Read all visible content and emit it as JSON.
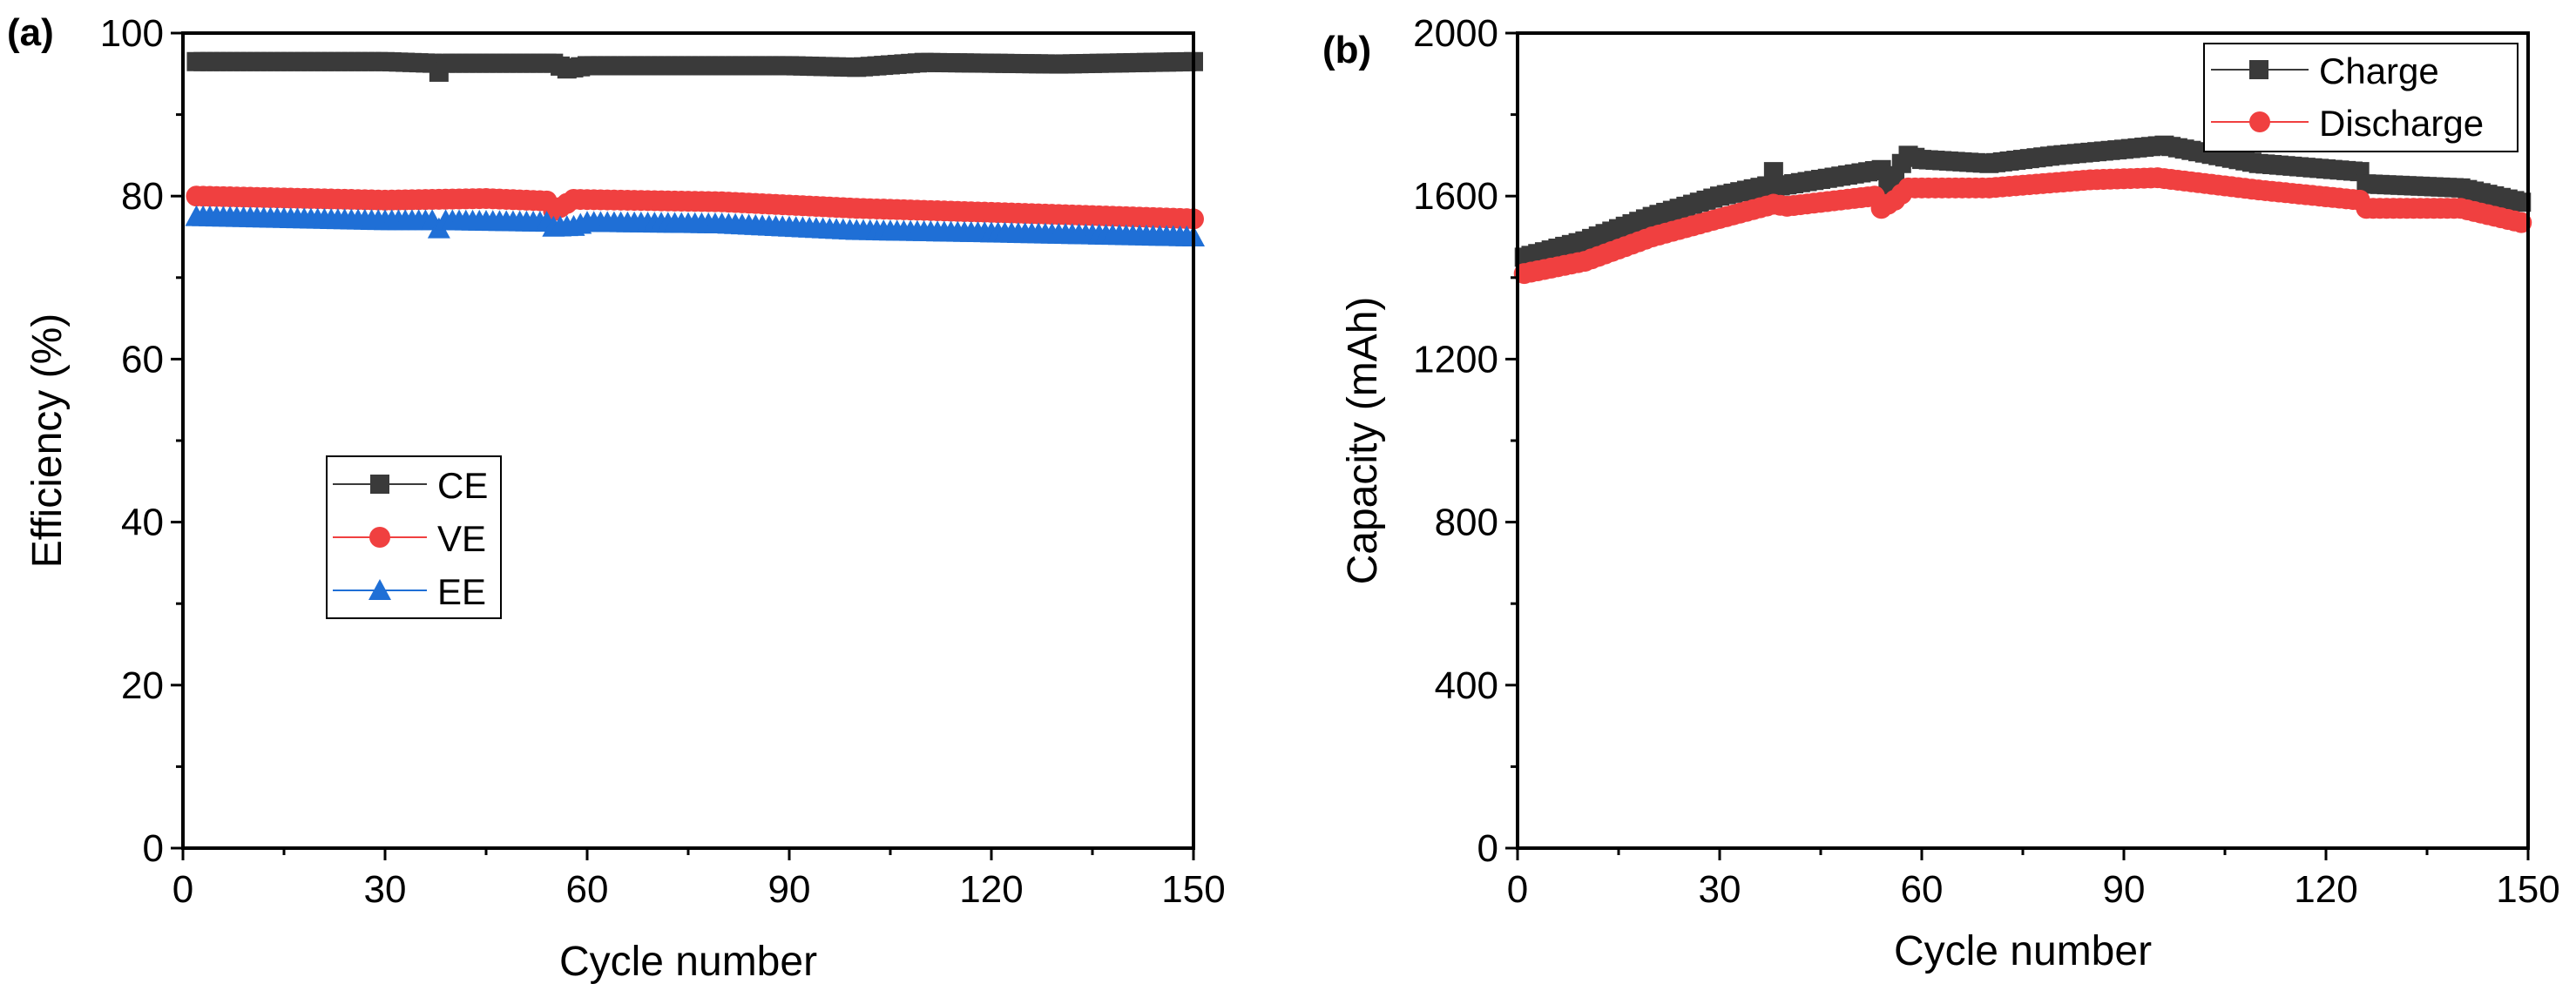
{
  "chart_data": [
    {
      "panel": "(a)",
      "type": "scatter",
      "xlabel": "Cycle number",
      "ylabel": "Efficiency (%)",
      "xlim": [
        0,
        150
      ],
      "ylim": [
        0,
        100
      ],
      "xticks": [
        0,
        30,
        60,
        90,
        120,
        150
      ],
      "yticks": [
        0,
        20,
        40,
        60,
        80,
        100
      ],
      "xtick_labels": [
        "0",
        "30",
        "60",
        "90",
        "120",
        "150"
      ],
      "ytick_labels": [
        "0",
        "20",
        "40",
        "60",
        "80",
        "100"
      ],
      "legend_position": "center-left",
      "series": [
        {
          "name": "CE",
          "marker": "square",
          "color": "#3a3a3a",
          "keypoints": [
            [
              2,
              96.5
            ],
            [
              30,
              96.5
            ],
            [
              37,
              96.3
            ],
            [
              38,
              95.2
            ],
            [
              39,
              96.3
            ],
            [
              55,
              96.3
            ],
            [
              57,
              95.6
            ],
            [
              60,
              96.0
            ],
            [
              90,
              96.0
            ],
            [
              100,
              95.8
            ],
            [
              110,
              96.4
            ],
            [
              130,
              96.2
            ],
            [
              150,
              96.5
            ]
          ]
        },
        {
          "name": "VE",
          "marker": "circle",
          "color": "#f04040",
          "keypoints": [
            [
              2,
              80.0
            ],
            [
              30,
              79.5
            ],
            [
              45,
              79.7
            ],
            [
              54,
              79.4
            ],
            [
              55,
              78.2
            ],
            [
              56,
              78.6
            ],
            [
              58,
              79.6
            ],
            [
              80,
              79.3
            ],
            [
              100,
              78.5
            ],
            [
              120,
              78.0
            ],
            [
              150,
              77.2
            ]
          ]
        },
        {
          "name": "EE",
          "marker": "triangle",
          "color": "#1f6fd6",
          "keypoints": [
            [
              2,
              77.5
            ],
            [
              30,
              77.0
            ],
            [
              37,
              77.0
            ],
            [
              38,
              76.0
            ],
            [
              39,
              77.0
            ],
            [
              54,
              76.8
            ],
            [
              55,
              76.2
            ],
            [
              58,
              76.3
            ],
            [
              60,
              76.8
            ],
            [
              80,
              76.6
            ],
            [
              100,
              75.8
            ],
            [
              120,
              75.5
            ],
            [
              150,
              75.0
            ]
          ]
        }
      ]
    },
    {
      "panel": "(b)",
      "type": "scatter",
      "xlabel": "Cycle number",
      "ylabel": "Capacity (mAh)",
      "xlim": [
        0,
        150
      ],
      "ylim": [
        0,
        2000
      ],
      "xticks": [
        0,
        30,
        60,
        90,
        120,
        150
      ],
      "yticks": [
        0,
        400,
        800,
        1200,
        1600,
        2000
      ],
      "xtick_labels": [
        "0",
        "30",
        "60",
        "90",
        "120",
        "150"
      ],
      "ytick_labels": [
        "0",
        "400",
        "800",
        "1200",
        "1600",
        "2000"
      ],
      "legend_position": "top-right",
      "series": [
        {
          "name": "Charge",
          "marker": "square",
          "color": "#3a3a3a",
          "keypoints": [
            [
              1,
              1450
            ],
            [
              10,
              1490
            ],
            [
              20,
              1550
            ],
            [
              30,
              1600
            ],
            [
              37,
              1625
            ],
            [
              38,
              1660
            ],
            [
              39,
              1625
            ],
            [
              54,
              1665
            ],
            [
              55,
              1620
            ],
            [
              57,
              1680
            ],
            [
              58,
              1700
            ],
            [
              60,
              1690
            ],
            [
              70,
              1680
            ],
            [
              80,
              1700
            ],
            [
              90,
              1715
            ],
            [
              96,
              1725
            ],
            [
              110,
              1680
            ],
            [
              125,
              1660
            ],
            [
              126,
              1630
            ],
            [
              140,
              1620
            ],
            [
              149,
              1585
            ]
          ]
        },
        {
          "name": "Discharge",
          "marker": "circle",
          "color": "#f04040",
          "keypoints": [
            [
              1,
              1410
            ],
            [
              10,
              1440
            ],
            [
              20,
              1500
            ],
            [
              30,
              1545
            ],
            [
              38,
              1580
            ],
            [
              40,
              1575
            ],
            [
              53,
              1600
            ],
            [
              54,
              1570
            ],
            [
              56,
              1590
            ],
            [
              58,
              1620
            ],
            [
              70,
              1620
            ],
            [
              85,
              1640
            ],
            [
              95,
              1645
            ],
            [
              110,
              1615
            ],
            [
              125,
              1590
            ],
            [
              126,
              1570
            ],
            [
              140,
              1570
            ],
            [
              149,
              1535
            ]
          ]
        }
      ]
    }
  ]
}
